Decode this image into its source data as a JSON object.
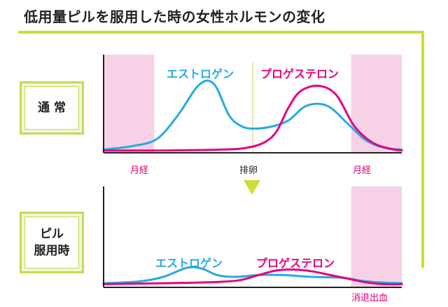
{
  "title": "低用量ピルを服用した時の女性ホルモンの変化",
  "colors": {
    "estrogen": "#27aae1",
    "progesterone": "#e6007e",
    "menstruation_band": "#f7d2e6",
    "accent_frame": "#cddc39",
    "arrow": "#cddc39"
  },
  "icons": {
    "arrow": "down-triangle-arrow-icon"
  },
  "normal": {
    "label": "通 常",
    "estrogen_label": "エストロゲン",
    "progesterone_label": "プロゲステロン",
    "menstruation_start_label": "月経",
    "ovulation_label": "排卵",
    "menstruation_end_label": "月経"
  },
  "pill": {
    "label_line1": "ピル",
    "label_line2": "服用時",
    "estrogen_label": "エストロゲン",
    "progesterone_label": "プロゲステロン",
    "withdrawal_bleeding_label": "消退出血"
  },
  "chart_data": [
    {
      "type": "line",
      "name_ref": "normal",
      "x_range": [
        0,
        100
      ],
      "y_range": [
        0,
        100
      ],
      "menstruation_bands": [
        [
          0,
          17
        ],
        [
          83,
          100
        ]
      ],
      "ovulation_x": 50,
      "series": [
        {
          "name": "エストロゲン",
          "x": [
            0,
            10,
            18,
            25,
            32,
            37,
            42,
            46,
            50,
            56,
            62,
            68,
            75,
            82,
            88,
            94,
            100
          ],
          "y": [
            2,
            6,
            14,
            40,
            73,
            74,
            40,
            28,
            25,
            27,
            34,
            50,
            50,
            30,
            12,
            4,
            2
          ]
        },
        {
          "name": "プロゲステロン",
          "x": [
            0,
            20,
            40,
            48,
            54,
            58,
            62,
            66,
            72,
            78,
            84,
            90,
            96,
            100
          ],
          "y": [
            1,
            1,
            2,
            4,
            10,
            22,
            48,
            66,
            72,
            62,
            28,
            10,
            3,
            1
          ]
        }
      ]
    },
    {
      "type": "line",
      "name_ref": "pill",
      "x_range": [
        0,
        100
      ],
      "y_range": [
        0,
        100
      ],
      "menstruation_bands": [
        [
          83,
          100
        ]
      ],
      "series": [
        {
          "name": "エストロゲン",
          "x": [
            0,
            12,
            20,
            28,
            33,
            38,
            44,
            52,
            60,
            70,
            80,
            86,
            92,
            100
          ],
          "y": [
            3,
            5,
            10,
            20,
            19,
            12,
            10,
            12,
            12,
            10,
            9,
            6,
            4,
            3
          ]
        },
        {
          "name": "プロゲステロン",
          "x": [
            0,
            20,
            35,
            45,
            52,
            58,
            64,
            70,
            76,
            82,
            88,
            94,
            100
          ],
          "y": [
            2,
            3,
            4,
            6,
            12,
            17,
            18,
            16,
            12,
            8,
            4,
            2,
            2
          ]
        }
      ]
    }
  ]
}
